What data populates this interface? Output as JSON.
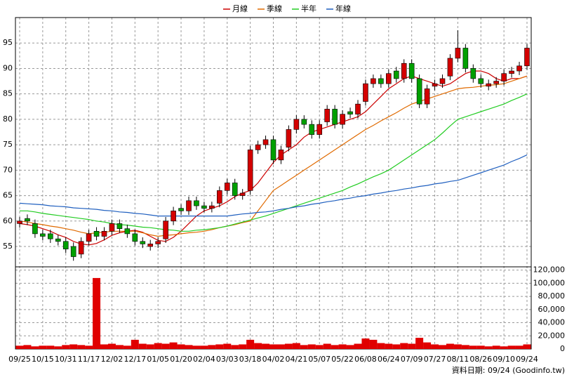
{
  "chart_data": {
    "type": "candlestick",
    "legend": "top",
    "grid": true,
    "up_color": "#d40000",
    "down_color": "#00a000",
    "categories": [
      "09/25",
      null,
      null,
      "10/15",
      null,
      null,
      "10/31",
      null,
      null,
      "11/17",
      null,
      null,
      "12/02",
      null,
      null,
      "12/17",
      null,
      null,
      "01/05",
      null,
      null,
      "01/20",
      null,
      null,
      "02/04",
      null,
      null,
      "03/03",
      null,
      null,
      "03/18",
      null,
      null,
      "04/02",
      null,
      null,
      "04/21",
      null,
      null,
      "05/07",
      null,
      null,
      "05/22",
      null,
      null,
      "06/08",
      null,
      null,
      "06/24",
      null,
      null,
      "07/09",
      null,
      null,
      "07/27",
      null,
      null,
      "08/11",
      null,
      null,
      "08/26",
      null,
      null,
      "09/10",
      null,
      null,
      "09/24"
    ],
    "open": [
      59.5,
      60.5,
      59.5,
      57.5,
      57.5,
      56.5,
      56,
      55,
      53.5,
      56,
      58,
      57,
      58,
      59.5,
      58.5,
      57.5,
      56,
      55,
      55.5,
      56.5,
      60,
      62.5,
      62,
      64,
      63,
      62.5,
      63.5,
      66,
      67.5,
      65,
      66,
      74,
      75,
      76,
      72,
      74.5,
      78,
      80,
      79,
      77,
      79.5,
      82,
      79,
      81.5,
      81,
      83.5,
      87,
      88,
      87,
      89.5,
      88,
      91,
      88,
      83,
      86.5,
      87,
      88.5,
      92,
      94,
      90,
      88,
      86.5,
      87,
      87.5,
      89,
      89.5,
      90.5
    ],
    "high": [
      60.8,
      61.3,
      60.3,
      58.3,
      58.3,
      57.3,
      56.8,
      55.8,
      56.8,
      58.3,
      58.8,
      58.8,
      60.3,
      60.3,
      59.3,
      58.3,
      56.8,
      56.3,
      56.8,
      60.8,
      62.8,
      63.3,
      64.8,
      64.8,
      63.8,
      63.8,
      66.8,
      68.3,
      68.3,
      66.3,
      74.8,
      75.8,
      76.8,
      76.8,
      74.8,
      78.8,
      80.8,
      80.8,
      79.8,
      79.8,
      82.8,
      82.8,
      81.8,
      82.3,
      83.8,
      87.8,
      88.8,
      88.8,
      89.8,
      90.3,
      91.8,
      91.8,
      88.8,
      86.8,
      87.8,
      88.8,
      92.8,
      97.5,
      94.8,
      90.8,
      88.8,
      87.8,
      88.3,
      89.8,
      90.3,
      91.3,
      94.8
    ],
    "low": [
      58.7,
      59.2,
      56.7,
      56.2,
      55.7,
      55.2,
      53.7,
      52.2,
      52.7,
      55.2,
      56.2,
      56.2,
      57.2,
      57.7,
      56.7,
      55.2,
      54.7,
      54.2,
      54.7,
      55.7,
      59.2,
      61.2,
      61.2,
      62.2,
      61.7,
      61.7,
      62.7,
      65.2,
      64.2,
      64.2,
      65.2,
      73.2,
      74.2,
      71.2,
      71.2,
      73.7,
      77.2,
      78.2,
      76.2,
      76.2,
      78.7,
      78.2,
      78.2,
      80.2,
      80.2,
      82.7,
      86.2,
      86.2,
      86.2,
      87.2,
      87.2,
      87.2,
      82.2,
      82.2,
      85.7,
      86.2,
      87.7,
      91.2,
      89.2,
      87.2,
      86.2,
      85.7,
      86.2,
      86.7,
      88.2,
      88.7,
      89.7
    ],
    "close": [
      60,
      60,
      57.5,
      57,
      56.5,
      56,
      54.5,
      53,
      56,
      57.5,
      57,
      58,
      59.5,
      58.5,
      57.5,
      56,
      55.5,
      55.5,
      56,
      60,
      62,
      62,
      64,
      63,
      62.5,
      63,
      66,
      67.5,
      65,
      65.5,
      74,
      75,
      76,
      72,
      74,
      78,
      80,
      79,
      77,
      79,
      82,
      79,
      81,
      81,
      83,
      87,
      88,
      87,
      89,
      88,
      91,
      88,
      83,
      86,
      87,
      88,
      92,
      94,
      90,
      88,
      87,
      87,
      87.5,
      89,
      89.5,
      90.5,
      94
    ],
    "ylim": [
      51,
      100
    ],
    "yticks": [
      55,
      60,
      65,
      70,
      75,
      80,
      85,
      90,
      95
    ],
    "series": [
      {
        "name": "月線",
        "color": "#cc0000",
        "values": [
          59.5,
          59.3,
          59.0,
          58.5,
          58.0,
          57.3,
          56.8,
          56.0,
          55.5,
          55.3,
          55.6,
          56.3,
          57.2,
          57.7,
          58.0,
          58.2,
          57.8,
          57.0,
          56.2,
          56.0,
          56.8,
          58.0,
          59.5,
          61.0,
          62.0,
          62.5,
          63.0,
          63.8,
          64.8,
          65.5,
          66.0,
          67.5,
          69.5,
          71.5,
          73.0,
          74.0,
          75.0,
          76.5,
          77.5,
          78.0,
          78.5,
          79.0,
          79.5,
          80.0,
          80.5,
          81.5,
          83.0,
          84.5,
          86.0,
          87.0,
          88.0,
          88.5,
          88.0,
          87.5,
          87.0,
          86.5,
          87.0,
          88.0,
          89.0,
          89.5,
          89.5,
          89.0,
          88.0,
          87.5,
          88.0,
          88.0,
          88.5
        ]
      },
      {
        "name": "季線",
        "color": "#e06a00",
        "values": [
          60.0,
          59.8,
          59.5,
          59.3,
          59.0,
          58.8,
          58.5,
          58.2,
          57.8,
          57.5,
          57.7,
          57.8,
          58.0,
          58.0,
          58.0,
          58.0,
          57.7,
          57.3,
          57.0,
          57.2,
          57.3,
          57.5,
          57.7,
          57.8,
          58.0,
          58.3,
          58.7,
          59.0,
          59.3,
          59.7,
          60.0,
          62.0,
          64.0,
          66.0,
          67.0,
          68.0,
          69.0,
          70.0,
          71.0,
          72.0,
          73.0,
          74.0,
          75.0,
          76.0,
          77.0,
          78.0,
          78.8,
          79.7,
          80.5,
          81.3,
          82.2,
          83.0,
          83.5,
          84.0,
          84.5,
          85.0,
          85.5,
          86.0,
          86.2,
          86.3,
          86.5,
          86.7,
          86.8,
          87.0,
          87.5,
          88.0,
          88.5
        ]
      },
      {
        "name": "半年",
        "color": "#22cc22",
        "values": [
          62.0,
          62.0,
          61.8,
          61.5,
          61.3,
          61.1,
          60.9,
          60.7,
          60.5,
          60.3,
          60.0,
          59.8,
          59.5,
          59.3,
          59.2,
          59.0,
          58.8,
          58.7,
          58.5,
          58.3,
          58.2,
          58.0,
          58.0,
          58.2,
          58.3,
          58.5,
          58.7,
          59.0,
          59.4,
          59.8,
          60.2,
          60.6,
          61.0,
          61.5,
          62.0,
          62.5,
          63.0,
          63.5,
          64.0,
          64.5,
          65.0,
          65.5,
          66.0,
          66.7,
          67.3,
          68.0,
          68.7,
          69.3,
          70.0,
          71.0,
          72.0,
          73.0,
          74.0,
          75.0,
          76.0,
          77.3,
          78.7,
          80.0,
          80.5,
          81.0,
          81.5,
          82.0,
          82.5,
          83.0,
          83.7,
          84.3,
          85.0
        ]
      },
      {
        "name": "年線",
        "color": "#1f5fbf",
        "values": [
          63.5,
          63.4,
          63.3,
          63.2,
          63.0,
          62.9,
          62.8,
          62.6,
          62.5,
          62.4,
          62.3,
          62.1,
          62.0,
          61.8,
          61.7,
          61.5,
          61.4,
          61.2,
          61.0,
          61.0,
          61.0,
          61.0,
          61.0,
          61.0,
          61.0,
          61.0,
          61.0,
          61.0,
          61.2,
          61.4,
          61.5,
          61.7,
          61.8,
          62.0,
          62.3,
          62.5,
          62.8,
          63.0,
          63.3,
          63.5,
          63.8,
          64.0,
          64.3,
          64.5,
          64.8,
          65.0,
          65.3,
          65.5,
          65.8,
          66.0,
          66.3,
          66.5,
          66.8,
          67.0,
          67.3,
          67.5,
          67.8,
          68.0,
          68.5,
          69.0,
          69.5,
          70.0,
          70.5,
          71.0,
          71.7,
          72.3,
          73.0
        ]
      }
    ],
    "volume": {
      "color": "#e00000",
      "values": [
        5000,
        6000,
        4000,
        5000,
        5000,
        4000,
        6000,
        7000,
        6000,
        5000,
        108000,
        7000,
        8000,
        6000,
        5000,
        14000,
        8000,
        7000,
        9000,
        8000,
        10000,
        7000,
        6000,
        5000,
        5000,
        6000,
        7000,
        8000,
        6000,
        7000,
        14000,
        9000,
        8000,
        7000,
        7000,
        8000,
        9000,
        6000,
        7000,
        6000,
        8000,
        6000,
        7000,
        6000,
        8000,
        16000,
        14000,
        9000,
        8000,
        7000,
        9000,
        8000,
        17000,
        10000,
        7000,
        6000,
        8000,
        7000,
        6000,
        5000,
        5000,
        4000,
        5000,
        4000,
        5000,
        5000,
        7000
      ],
      "ylim": [
        0,
        125000
      ],
      "yticks": [
        0,
        {
          "value": 20000,
          "label": "20,000"
        },
        {
          "value": 40000,
          "label": "40,000"
        },
        {
          "value": 60000,
          "label": "60,000"
        },
        {
          "value": 80000,
          "label": "80,000"
        },
        {
          "value": 100000,
          "label": "100,000"
        },
        {
          "value": 120000,
          "label": "120,000"
        }
      ]
    },
    "source": "資料日期: 09/24 (Goodinfo.tw)"
  }
}
